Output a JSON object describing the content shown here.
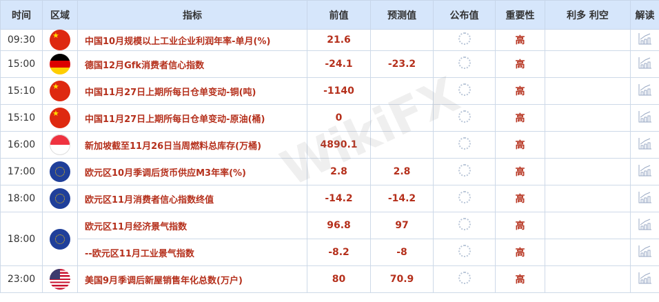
{
  "headers": [
    "时间",
    "区域",
    "指标",
    "前值",
    "预测值",
    "公布值",
    "重要性",
    "利多 利空",
    "解读"
  ],
  "rows": [
    {
      "time": "09:30",
      "flag": "china-flag",
      "indicator": "中国10月规模以上工业企业利润年率-单月(%)",
      "prev": "21.6",
      "forecast": "",
      "importance": "高"
    },
    {
      "time": "15:00",
      "flag": "germany-flag",
      "indicator": "德国12月Gfk消费者信心指数",
      "prev": "-24.1",
      "forecast": "-23.2",
      "importance": "高"
    },
    {
      "time": "15:10",
      "flag": "china-flag",
      "indicator": "中国11月27日上期所每日仓单变动-铜(吨)",
      "prev": "-1140",
      "forecast": "",
      "importance": "高"
    },
    {
      "time": "15:10",
      "flag": "china-flag",
      "indicator": "中国11月27日上期所每日仓单变动-原油(桶)",
      "prev": "0",
      "forecast": "",
      "importance": "高"
    },
    {
      "time": "16:00",
      "flag": "singapore-flag",
      "indicator": "新加坡截至11月26日当周燃料总库存(万桶)",
      "prev": "4890.1",
      "forecast": "",
      "importance": "高"
    },
    {
      "time": "17:00",
      "flag": "eu-flag",
      "indicator": "欧元区10月季调后货币供应M3年率(%)",
      "prev": "2.8",
      "forecast": "2.8",
      "importance": "高"
    },
    {
      "time": "18:00",
      "flag": "eu-flag",
      "indicator": "欧元区11月消费者信心指数终值",
      "prev": "-14.2",
      "forecast": "-14.2",
      "importance": "高"
    },
    {
      "time": "18:00",
      "flag": "eu-flag",
      "indicator": "欧元区11月经济景气指数",
      "prev": "96.8",
      "forecast": "97",
      "importance": "高"
    },
    {
      "time": "",
      "flag": "",
      "indicator": "--欧元区11月工业景气指数",
      "prev": "-8.2",
      "forecast": "-8",
      "importance": "高"
    },
    {
      "time": "23:00",
      "flag": "us-flag",
      "indicator": "美国9月季调后新屋销售年化总数(万户)",
      "prev": "80",
      "forecast": "70.9",
      "importance": "高"
    }
  ],
  "watermark": "WikiFX"
}
